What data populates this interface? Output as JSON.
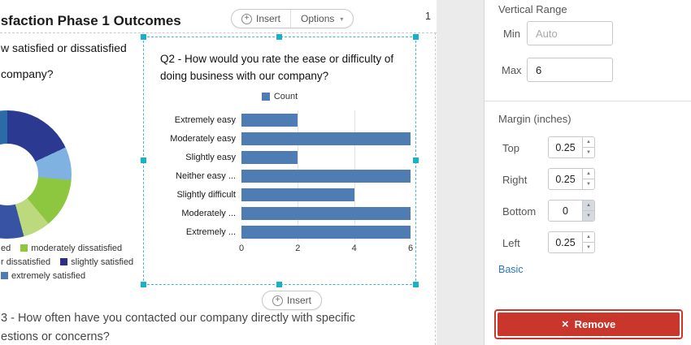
{
  "canvas": {
    "page_title": "isfaction Phase 1 Outcomes",
    "page_number": "1",
    "toolbar": {
      "insert": "Insert",
      "options": "Options"
    },
    "bottom_insert": "Insert",
    "question_top": {
      "line1": "w satisfied or dissatisfied",
      "line2": "company?"
    },
    "question_bottom": {
      "line1": "3 - How often have you contacted our company directly with specific",
      "line2": "estions or concerns?"
    },
    "donut_legend_rows": [
      {
        "items": [
          {
            "label": "ed"
          },
          {
            "swatch": "#8dc63f",
            "label": "moderately dissatisfied"
          }
        ]
      },
      {
        "items": [
          {
            "label": "r dissatisfied"
          },
          {
            "swatch": "#2d2f86",
            "label": "slightly satisfied"
          }
        ]
      },
      {
        "items": [
          {
            "swatch": "#4f7db3",
            "label": "extremely satisfied"
          }
        ]
      }
    ]
  },
  "chart_data": [
    {
      "type": "bar",
      "orientation": "horizontal",
      "title": "Q2 - How would you rate the ease or difficulty of doing business with our company?",
      "legend": [
        "Count"
      ],
      "categories": [
        "Extremely easy",
        "Moderately easy",
        "Slightly easy",
        "Neither easy ...",
        "Slightly difficult",
        "Moderately ...",
        "Extremely ..."
      ],
      "values": [
        2,
        6,
        2,
        6,
        4,
        6,
        6
      ],
      "xlim": [
        0,
        6
      ],
      "xticks": [
        0,
        2,
        4,
        6
      ],
      "bar_color": "#4f7db3",
      "grid": "vertical-light"
    },
    {
      "type": "pie",
      "subtype": "donut",
      "partially_visible": true,
      "segments": [
        {
          "color": "#2b3990",
          "sweep_deg": 65
        },
        {
          "color": "#7fb2e0",
          "sweep_deg": 30
        },
        {
          "color": "#8dc63f",
          "sweep_deg": 45
        },
        {
          "color": "#bcd97e",
          "sweep_deg": 25
        },
        {
          "color": "#3953a4",
          "sweep_deg": 60
        },
        {
          "color": "#85b7e2",
          "sweep_deg": 50
        },
        {
          "color": "#2b6ca8",
          "sweep_deg": 85
        }
      ],
      "legend_labels_visible": [
        "ed",
        "moderately dissatisfied",
        "r dissatisfied",
        "slightly satisfied",
        "extremely satisfied"
      ]
    }
  ],
  "panel": {
    "vertical_range": {
      "title": "Vertical Range",
      "min_label": "Min",
      "min_placeholder": "Auto",
      "max_label": "Max",
      "max_value": "6"
    },
    "margins": {
      "title": "Margin (inches)",
      "rows": [
        {
          "label": "Top",
          "value": "0.25",
          "active": false
        },
        {
          "label": "Right",
          "value": "0.25",
          "active": false
        },
        {
          "label": "Bottom",
          "value": "0",
          "active": true
        },
        {
          "label": "Left",
          "value": "0.25",
          "active": false
        }
      ]
    },
    "basic_link": "Basic",
    "remove_label": "Remove"
  }
}
